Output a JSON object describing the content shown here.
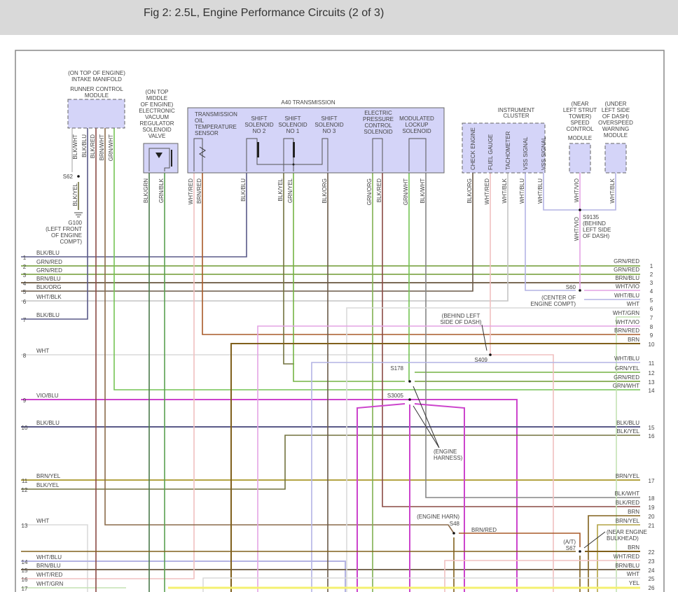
{
  "header": {
    "title": "Fig 2: 2.5L, Engine Performance Circuits (2 of 3)"
  },
  "runner": {
    "lines": [
      "(ON TOP OF ENGINE)",
      "INTAKE MANIFOLD",
      "RUNNER CONTROL",
      "MODULE"
    ],
    "wires": [
      "BLK/WHT",
      "BLK/BLU",
      "BLK/RED",
      "BRN/WHT",
      "GRN/WHT"
    ]
  },
  "evrv": {
    "lines": [
      "(ON TOP",
      "MIDDLE",
      "OF ENGINE)",
      "ELECTRONIC",
      "VACUUM",
      "REGULATOR",
      "SOLENOID",
      "VALVE"
    ],
    "wires": [
      "BLK/GRN",
      "GRN/BLK"
    ]
  },
  "a40": {
    "title": "A40 TRANSMISSION",
    "tots": [
      "TRANSMISSION",
      "OIL",
      "TEMPERATURE",
      "SENSOR"
    ],
    "ss2": [
      "SHIFT",
      "SOLENOID",
      "NO 2"
    ],
    "ss1": [
      "SHIFT",
      "SOLENOID",
      "NO 1"
    ],
    "ss3": [
      "SHIFT",
      "SOLENOID",
      "NO 3"
    ],
    "epc": [
      "ELECTRIC",
      "PRESSURE",
      "CONTROL",
      "SOLENOID"
    ],
    "mls": [
      "MODULATED",
      "LOCKUP",
      "SOLENOID"
    ],
    "wires": [
      "WHT/RED",
      "BRN/RED",
      "BLK/BLU",
      "BLK/YEL",
      "GRN/YEL",
      "BLK/ORG",
      "GRN/ORG",
      "BLK/RED",
      "GRN/WHT",
      "BLK/WHT"
    ]
  },
  "cluster": {
    "lines": [
      "INSTRUMENT",
      "CLUSTER"
    ],
    "pins": [
      "CHECK ENGINE",
      "FUEL GAUGE",
      "TACHOMETER",
      "VSS SIGNAL",
      "VSS SIGNAL"
    ],
    "wires": [
      "BLK/ORG",
      "WHT/RED",
      "WHT/BLK",
      "WHT/BLU",
      "WHT/BLU"
    ]
  },
  "speed_control": {
    "lines": [
      "(NEAR",
      "LEFT STRUT",
      "TOWER)",
      "SPEED",
      "CONTROL",
      "MODULE"
    ],
    "wire": "WHT/VIO"
  },
  "overspeed": {
    "lines": [
      "(UNDER",
      "LEFT SIDE",
      "OF DASH)",
      "OVERSPEED",
      "WARNING",
      "MODULE"
    ],
    "wire": "WHT/BLK"
  },
  "splices": {
    "s62": "S62",
    "s62_wire": "BLK/YEL",
    "g100": [
      "G100",
      "(LEFT FRONT",
      "OF ENGINE",
      "COMPT)"
    ],
    "s9135": [
      "S9135",
      "(BEHIND",
      "LEFT SIDE",
      "OF DASH)"
    ],
    "s9135_wire": "WHT/VIO",
    "s60": "S60",
    "s60_loc": [
      "(CENTER OF",
      "ENGINE COMPT)"
    ],
    "s409": "S409",
    "s409_loc": [
      "(BEHIND LEFT",
      "SIDE OF DASH)"
    ],
    "s178": "S178",
    "s3005": "S3005",
    "engine_harness": [
      "(ENGINE",
      "HARNESS)"
    ],
    "s48_loc": "(ENGINE HARN)",
    "s48": "S48",
    "s48_wire": "BRN/RED",
    "s67_at": "(A/T)",
    "s67": "S67",
    "s67_loc": [
      "(NEAR ENGINE",
      "BULKHEAD)"
    ]
  },
  "left_rows": [
    {
      "num": "1",
      "label": "BLK/BLU"
    },
    {
      "num": "2",
      "label": "GRN/RED"
    },
    {
      "num": "3",
      "label": "GRN/RED"
    },
    {
      "num": "4",
      "label": "BRN/BLU"
    },
    {
      "num": "5",
      "label": "BLK/ORG"
    },
    {
      "num": "6",
      "label": "WHT/BLK"
    },
    {
      "num": "7",
      "label": "BLK/BLU"
    },
    {
      "num": "8",
      "label": "WHT"
    },
    {
      "num": "9",
      "label": "VIO/BLU"
    },
    {
      "num": "10",
      "label": "BLK/BLU"
    },
    {
      "num": "11",
      "label": "BRN/YEL"
    },
    {
      "num": "12",
      "label": "BLK/YEL"
    },
    {
      "num": "13",
      "label": "WHT"
    },
    {
      "num": "14",
      "label": "WHT/BLU"
    },
    {
      "num": "15",
      "label": "BRN/BLU"
    },
    {
      "num": "16",
      "label": "WHT/RED"
    },
    {
      "num": "17",
      "label": "WHT/GRN"
    }
  ],
  "right_rows": [
    {
      "num": "1",
      "label": "GRN/RED"
    },
    {
      "num": "2",
      "label": "GRN/RED"
    },
    {
      "num": "3",
      "label": "BRN/BLU"
    },
    {
      "num": "4",
      "label": "WHT/VIO"
    },
    {
      "num": "5",
      "label": "WHT/BLU"
    },
    {
      "num": "6",
      "label": "WHT"
    },
    {
      "num": "7",
      "label": "WHT/GRN"
    },
    {
      "num": "8",
      "label": "WHT/VIO"
    },
    {
      "num": "9",
      "label": "BRN/RED"
    },
    {
      "num": "10",
      "label": "BRN"
    },
    {
      "num": "11",
      "label": "WHT/BLU"
    },
    {
      "num": "12",
      "label": "GRN/YEL"
    },
    {
      "num": "13",
      "label": "GRN/RED"
    },
    {
      "num": "14",
      "label": "GRN/WHT"
    },
    {
      "num": "15",
      "label": "BLK/BLU"
    },
    {
      "num": "16",
      "label": "BLK/YEL"
    },
    {
      "num": "17",
      "label": "BRN/YEL"
    },
    {
      "num": "18",
      "label": "BLK/WHT"
    },
    {
      "num": "19",
      "label": "BLK/RED"
    },
    {
      "num": "20",
      "label": "BRN"
    },
    {
      "num": "21",
      "label": "BRN/YEL"
    },
    {
      "num": "22",
      "label": "BRN"
    },
    {
      "num": "23",
      "label": "WHT/RED"
    },
    {
      "num": "24",
      "label": "BRN/BLU"
    },
    {
      "num": "25",
      "label": "WHT"
    },
    {
      "num": "26",
      "label": "YEL"
    }
  ],
  "wire_colors": {
    "BLK/BLU": "#5a5a88",
    "GRN/RED": "#6e9a30",
    "BRN/BLU": "#7a6a55",
    "BLK/ORG": "#6a5a48",
    "WHT/BLK": "#c4c4c4",
    "WHT": "#dadada",
    "VIO/BLU": "#cc44cc",
    "BRN/YEL": "#b4a444",
    "BLK/YEL": "#72723e",
    "WHT/BLU": "#b4b4e4",
    "WHT/RED": "#f0c0c0",
    "WHT/GRN": "#c4e2b4",
    "WHT/VIO": "#e4a4e4",
    "BRN/RED": "#a85a28",
    "BRN": "#80601c",
    "GRN/YEL": "#74b444",
    "GRN/WHT": "#74c454",
    "BLK/WHT": "#868686",
    "BLK/RED": "#8a4a44",
    "BRN/WHT": "#8a6a4a",
    "BLK/GRN": "#4a7a4a",
    "GRN/BLK": "#5aa050",
    "GRN/ORG": "#80b050",
    "YEL": "#f4f070"
  }
}
